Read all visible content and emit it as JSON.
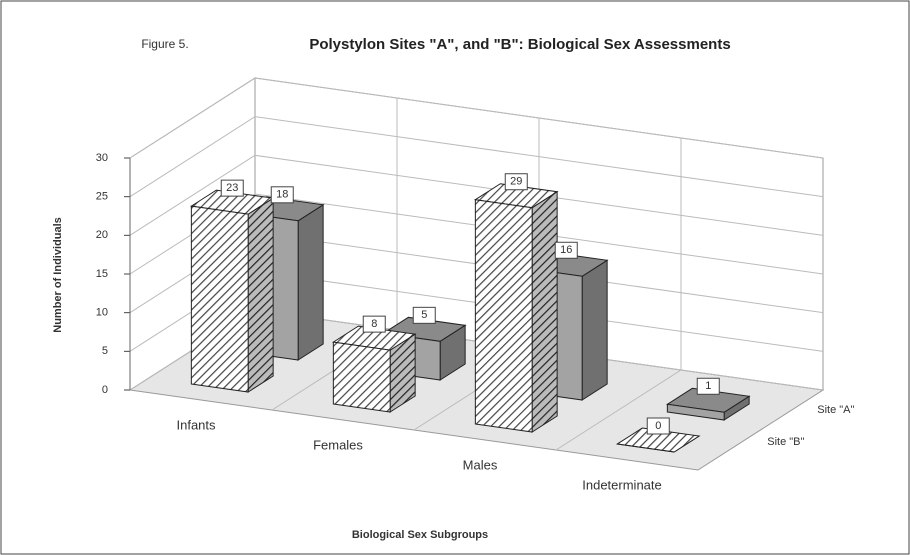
{
  "chart_data": {
    "type": "bar3d",
    "figure_label": "Figure 5.",
    "title": "Polystylon Sites \"A\", and \"B\": Biological Sex Assessments",
    "y_label": "Number of Individuals",
    "x_label": "Biological Sex Subgroups",
    "categories": [
      "Infants",
      "Females",
      "Males",
      "Indeterminate"
    ],
    "series": [
      {
        "name": "Site \"A\"",
        "color": "#a3a3a3",
        "values": [
          18,
          5,
          16,
          1
        ]
      },
      {
        "name": "Site \"B\"",
        "color": "#555555",
        "hatch": true,
        "values": [
          23,
          8,
          29,
          0
        ]
      }
    ],
    "ylim": [
      0,
      30
    ],
    "yticks": [
      0,
      5,
      10,
      15,
      20,
      25,
      30
    ],
    "grid": true
  }
}
